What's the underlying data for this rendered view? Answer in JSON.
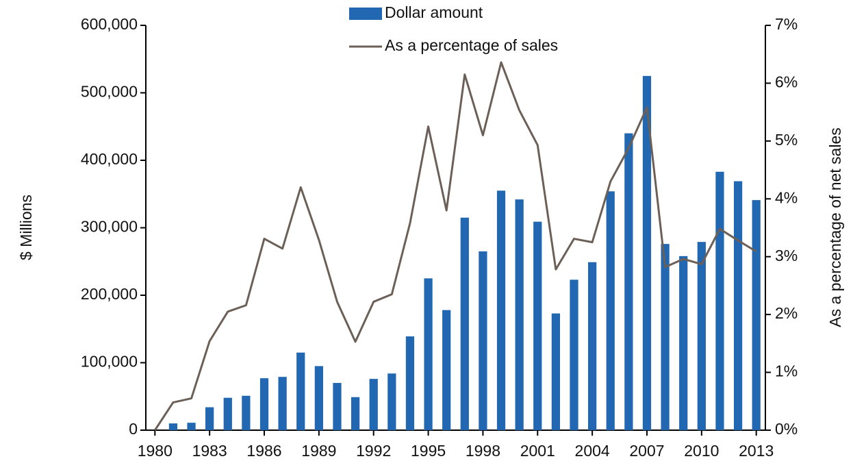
{
  "chart_data": {
    "type": "bar",
    "x": [
      1980,
      1981,
      1982,
      1983,
      1984,
      1985,
      1986,
      1987,
      1988,
      1989,
      1990,
      1991,
      1992,
      1993,
      1994,
      1995,
      1996,
      1997,
      1998,
      1999,
      2000,
      2001,
      2002,
      2003,
      2004,
      2005,
      2006,
      2007,
      2008,
      2009,
      2010,
      2011,
      2012,
      2013
    ],
    "xlim": [
      1979.5,
      2013.5
    ],
    "xticks": [
      1980,
      1983,
      1986,
      1989,
      1992,
      1995,
      1998,
      2001,
      2004,
      2007,
      2010,
      2013
    ],
    "ylim": [
      0,
      600000
    ],
    "yticks": [
      {
        "value": 0,
        "label": "0"
      },
      {
        "value": 100000,
        "label": "100,000"
      },
      {
        "value": 200000,
        "label": "200,000"
      },
      {
        "value": 300000,
        "label": "300,000"
      },
      {
        "value": 400000,
        "label": "400,000"
      },
      {
        "value": 500000,
        "label": "500,000"
      },
      {
        "value": 600000,
        "label": "600,000"
      }
    ],
    "y2lim": [
      0,
      7
    ],
    "y2ticks": [
      {
        "value": 0,
        "label": "0%"
      },
      {
        "value": 1,
        "label": "1%"
      },
      {
        "value": 2,
        "label": "2%"
      },
      {
        "value": 3,
        "label": "3%"
      },
      {
        "value": 4,
        "label": "4%"
      },
      {
        "value": 5,
        "label": "5%"
      },
      {
        "value": 6,
        "label": "6%"
      },
      {
        "value": 7,
        "label": "7%"
      }
    ],
    "ylabel": "$ Millions",
    "y2label": "As a percentage of net sales",
    "series": [
      {
        "name": "Dollar amount",
        "type": "bar",
        "color": "#2167b1",
        "values": [
          0,
          10000,
          11000,
          34000,
          48000,
          51000,
          77000,
          79000,
          115000,
          95000,
          70000,
          49000,
          76000,
          84000,
          139000,
          225000,
          178000,
          315000,
          265000,
          355000,
          342000,
          309000,
          173000,
          223000,
          249000,
          354000,
          440000,
          525000,
          276000,
          258000,
          279000,
          383000,
          369000,
          341000
        ]
      },
      {
        "name": "As a percentage of sales",
        "type": "line",
        "axis": "y2",
        "color": "#6b5f57",
        "values": [
          0,
          0.48,
          0.55,
          1.54,
          2.05,
          2.16,
          3.31,
          3.14,
          4.2,
          3.29,
          2.22,
          1.53,
          2.22,
          2.35,
          3.58,
          5.25,
          3.8,
          6.15,
          5.1,
          6.36,
          5.53,
          4.93,
          2.78,
          3.31,
          3.25,
          4.3,
          4.88,
          5.58,
          2.82,
          2.96,
          2.87,
          3.48,
          3.28,
          3.09
        ]
      }
    ]
  }
}
